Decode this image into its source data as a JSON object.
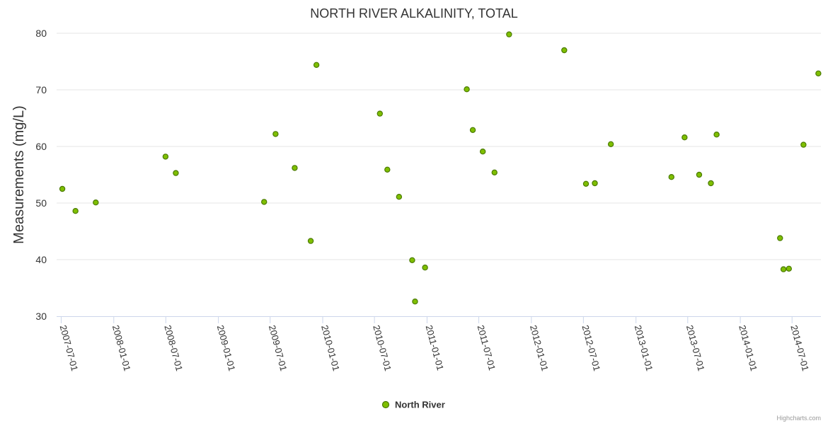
{
  "chart_data": {
    "type": "scatter",
    "title": "NORTH RIVER ALKALINITY, TOTAL",
    "ylabel": "Measurements (mg/L)",
    "xlabel": "",
    "ylim": [
      30,
      80
    ],
    "yticks": [
      30,
      40,
      50,
      60,
      70,
      80
    ],
    "xlim": [
      "2007-06-15",
      "2014-10-10"
    ],
    "xticks": [
      "2007-07-01",
      "2008-01-01",
      "2008-07-01",
      "2009-01-01",
      "2009-07-01",
      "2010-01-01",
      "2010-07-01",
      "2011-01-01",
      "2011-07-01",
      "2012-01-01",
      "2012-07-01",
      "2013-01-01",
      "2013-07-01",
      "2014-01-01",
      "2014-07-01"
    ],
    "grid": "horizontal",
    "legend_position": "bottom-center",
    "series": [
      {
        "name": "North River",
        "color": "#7fbf00",
        "border_color": "#4a7a00",
        "points": [
          {
            "x": "2007-07-05",
            "y": 52.5
          },
          {
            "x": "2007-08-20",
            "y": 48.6
          },
          {
            "x": "2007-10-30",
            "y": 50.1
          },
          {
            "x": "2008-06-30",
            "y": 58.2
          },
          {
            "x": "2008-08-05",
            "y": 55.3
          },
          {
            "x": "2009-06-10",
            "y": 50.2
          },
          {
            "x": "2009-07-20",
            "y": 62.2
          },
          {
            "x": "2009-09-25",
            "y": 56.2
          },
          {
            "x": "2009-11-20",
            "y": 43.3
          },
          {
            "x": "2009-12-10",
            "y": 74.4
          },
          {
            "x": "2010-07-20",
            "y": 65.8
          },
          {
            "x": "2010-08-15",
            "y": 55.9
          },
          {
            "x": "2010-09-25",
            "y": 51.1
          },
          {
            "x": "2010-11-10",
            "y": 39.9
          },
          {
            "x": "2010-11-20",
            "y": 32.6
          },
          {
            "x": "2010-12-25",
            "y": 38.6
          },
          {
            "x": "2011-05-20",
            "y": 70.1
          },
          {
            "x": "2011-06-10",
            "y": 62.9
          },
          {
            "x": "2011-07-15",
            "y": 59.1
          },
          {
            "x": "2011-08-25",
            "y": 55.4
          },
          {
            "x": "2011-10-15",
            "y": 79.8
          },
          {
            "x": "2012-04-25",
            "y": 77.0
          },
          {
            "x": "2012-07-10",
            "y": 53.4
          },
          {
            "x": "2012-08-10",
            "y": 53.5
          },
          {
            "x": "2012-10-05",
            "y": 60.4
          },
          {
            "x": "2013-05-05",
            "y": 54.6
          },
          {
            "x": "2013-06-20",
            "y": 61.6
          },
          {
            "x": "2013-08-10",
            "y": 55.0
          },
          {
            "x": "2013-09-20",
            "y": 53.5
          },
          {
            "x": "2013-10-10",
            "y": 62.1
          },
          {
            "x": "2014-05-20",
            "y": 43.8
          },
          {
            "x": "2014-06-01",
            "y": 38.3
          },
          {
            "x": "2014-06-20",
            "y": 38.4
          },
          {
            "x": "2014-08-10",
            "y": 60.3
          },
          {
            "x": "2014-10-01",
            "y": 72.9
          }
        ]
      }
    ]
  },
  "credits": "Highcharts.com"
}
